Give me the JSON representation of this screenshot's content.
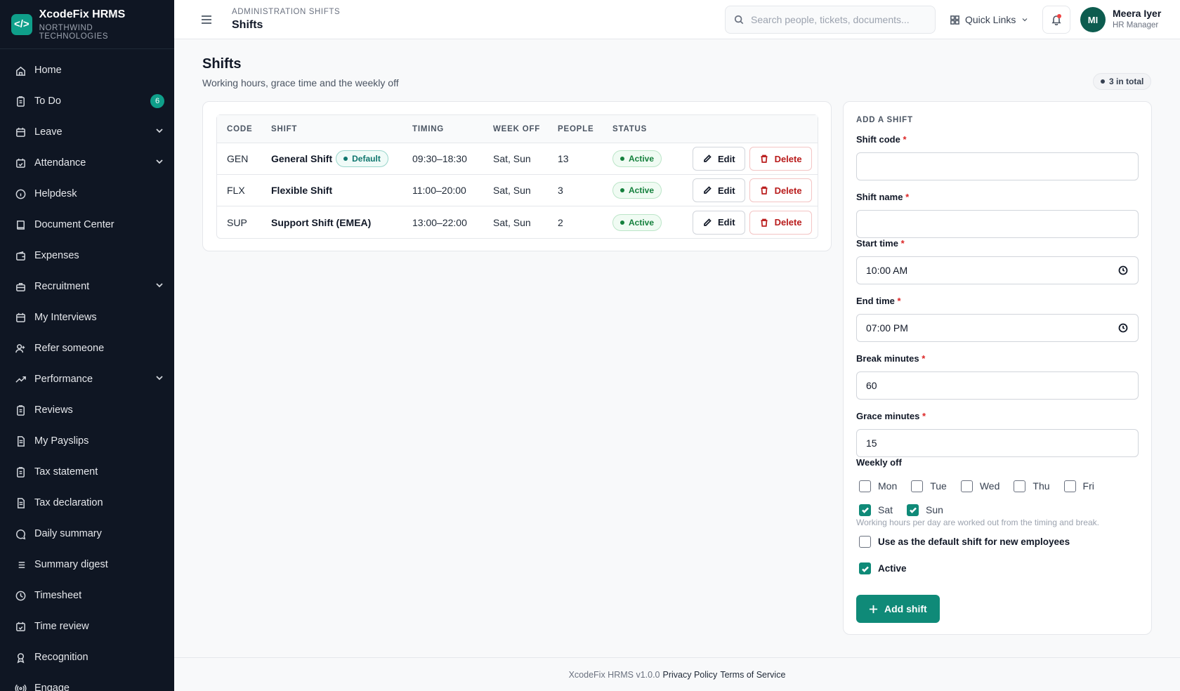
{
  "brand": {
    "logo": "</>",
    "name": "XcodeFix HRMS",
    "org": "NORTHWIND TECHNOLOGIES"
  },
  "sidebar": {
    "items": [
      {
        "label": "Home",
        "icon": "home-icon"
      },
      {
        "label": "To Do",
        "icon": "clipboard-icon",
        "badge": "6"
      },
      {
        "label": "Leave",
        "icon": "calendar-icon",
        "chevron": true
      },
      {
        "label": "Attendance",
        "icon": "calendar-check-icon",
        "chevron": true
      },
      {
        "label": "Helpdesk",
        "icon": "info-icon"
      },
      {
        "label": "Document Center",
        "icon": "book-icon"
      },
      {
        "label": "Expenses",
        "icon": "wallet-icon"
      },
      {
        "label": "Recruitment",
        "icon": "briefcase-icon",
        "chevron": true
      },
      {
        "label": "My Interviews",
        "icon": "calendar-icon"
      },
      {
        "label": "Refer someone",
        "icon": "user-plus-icon"
      },
      {
        "label": "Performance",
        "icon": "trending-up-icon",
        "chevron": true
      },
      {
        "label": "Reviews",
        "icon": "clipboard-icon"
      },
      {
        "label": "My Payslips",
        "icon": "file-icon"
      },
      {
        "label": "Tax statement",
        "icon": "clipboard-icon"
      },
      {
        "label": "Tax declaration",
        "icon": "file-icon"
      },
      {
        "label": "Daily summary",
        "icon": "message-icon"
      },
      {
        "label": "Summary digest",
        "icon": "list-icon"
      },
      {
        "label": "Timesheet",
        "icon": "clock-icon"
      },
      {
        "label": "Time review",
        "icon": "calendar-check-icon"
      },
      {
        "label": "Recognition",
        "icon": "award-icon"
      },
      {
        "label": "Engage",
        "icon": "broadcast-icon"
      }
    ]
  },
  "header": {
    "crumb": "ADMINISTRATION SHIFTS",
    "title": "Shifts",
    "search_placeholder": "Search people, tickets, documents...",
    "quick_links": "Quick Links",
    "avatar_initials": "MI",
    "user_name": "Meera Iyer",
    "user_role": "HR Manager"
  },
  "main": {
    "title": "Shifts",
    "subtitle": "Working hours, grace time and the weekly off",
    "total": "3 in total"
  },
  "table": {
    "headers": {
      "code": "CODE",
      "shift": "SHIFT",
      "timing": "TIMING",
      "week_off": "WEEK OFF",
      "people": "PEOPLE",
      "status": "STATUS"
    },
    "rows": [
      {
        "code": "GEN",
        "shift": "General Shift",
        "default": "Default",
        "timing": "09:30–18:30",
        "week_off": "Sat, Sun",
        "people": "13",
        "status": "Active"
      },
      {
        "code": "FLX",
        "shift": "Flexible Shift",
        "timing": "11:00–20:00",
        "week_off": "Sat, Sun",
        "people": "3",
        "status": "Active"
      },
      {
        "code": "SUP",
        "shift": "Support Shift (EMEA)",
        "timing": "13:00–22:00",
        "week_off": "Sat, Sun",
        "people": "2",
        "status": "Active"
      }
    ],
    "edit_label": "Edit",
    "delete_label": "Delete"
  },
  "form": {
    "heading": "ADD A SHIFT",
    "shift_code_label": "Shift code",
    "shift_name_label": "Shift name",
    "start_time_label": "Start time",
    "start_time_value": "10:00 AM",
    "end_time_label": "End time",
    "end_time_value": "07:00 PM",
    "break_label": "Break minutes",
    "break_value": "60",
    "grace_label": "Grace minutes",
    "grace_value": "15",
    "weekly_off_label": "Weekly off",
    "days": [
      {
        "label": "Mon",
        "checked": false
      },
      {
        "label": "Tue",
        "checked": false
      },
      {
        "label": "Wed",
        "checked": false
      },
      {
        "label": "Thu",
        "checked": false
      },
      {
        "label": "Fri",
        "checked": false
      },
      {
        "label": "Sat",
        "checked": true
      },
      {
        "label": "Sun",
        "checked": true
      }
    ],
    "hint": "Working hours per day are worked out from the timing and break.",
    "default_label": "Use as the default shift for new employees",
    "default_checked": false,
    "active_label": "Active",
    "active_checked": true,
    "required_mark": "*",
    "submit_label": "Add shift"
  },
  "footer": {
    "version": "XcodeFix HRMS v1.0.0",
    "privacy": "Privacy Policy",
    "terms": "Terms of Service"
  }
}
